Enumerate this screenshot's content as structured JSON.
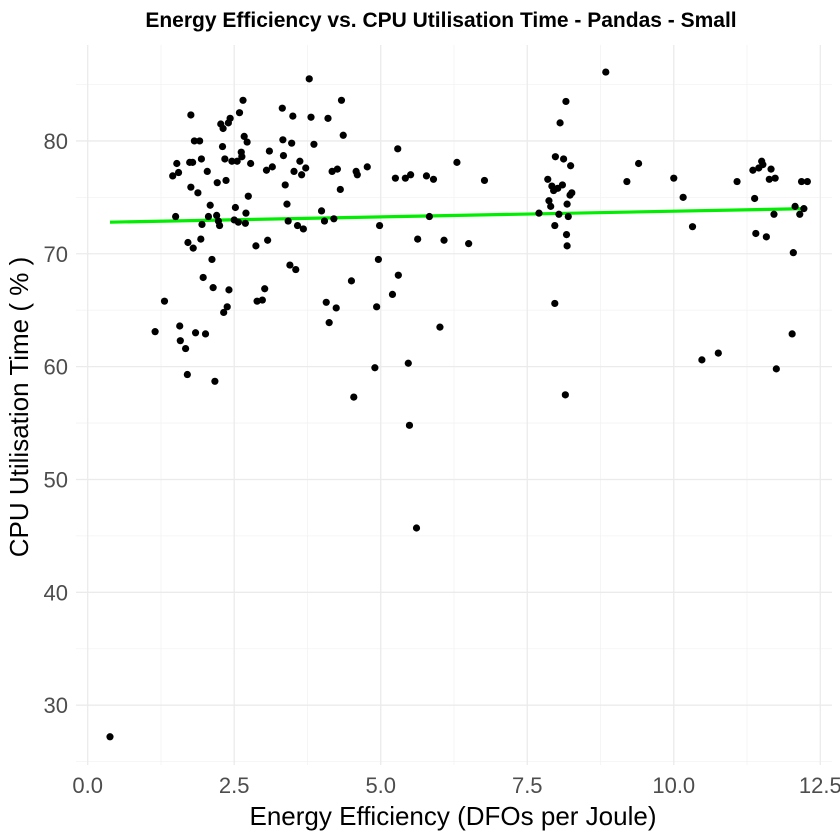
{
  "chart_data": {
    "type": "scatter",
    "title": "Energy Efficiency vs. CPU Utilisation Time  -  Pandas  -  Small",
    "xlabel": "Energy Efficiency (DFOs per Joule)",
    "ylabel": "CPU Utilisation Time ( % )",
    "xlim": [
      -0.2,
      12.7
    ],
    "ylim": [
      24.7,
      88.5
    ],
    "x_ticks": [
      0,
      2.5,
      5,
      7.5,
      10,
      12.5
    ],
    "x_tick_labels": [
      "0.0",
      "2.5",
      "5.0",
      "7.5",
      "10.0",
      "12.5"
    ],
    "y_ticks": [
      30,
      40,
      50,
      60,
      70,
      80
    ],
    "y_tick_labels": [
      "30",
      "40",
      "50",
      "60",
      "70",
      "80"
    ],
    "grid": true,
    "legend": "none",
    "point_color": "#000000",
    "trend_color": "#00ee00",
    "trend_line": {
      "x": [
        0.38,
        12.25
      ],
      "y": [
        72.8,
        74.0
      ]
    },
    "series": [
      {
        "values": [
          [
            0.38,
            27.2
          ],
          [
            1.15,
            63.1
          ],
          [
            1.31,
            65.8
          ],
          [
            1.45,
            76.9
          ],
          [
            1.5,
            73.3
          ],
          [
            1.52,
            78.0
          ],
          [
            1.55,
            77.2
          ],
          [
            1.57,
            63.6
          ],
          [
            1.58,
            62.3
          ],
          [
            1.67,
            61.6
          ],
          [
            1.7,
            59.3
          ],
          [
            1.71,
            71.0
          ],
          [
            1.74,
            78.1
          ],
          [
            1.76,
            82.3
          ],
          [
            1.76,
            75.9
          ],
          [
            1.79,
            78.1
          ],
          [
            1.8,
            70.5
          ],
          [
            1.82,
            80.0
          ],
          [
            1.84,
            63.0
          ],
          [
            1.88,
            75.4
          ],
          [
            1.91,
            80.0
          ],
          [
            1.93,
            71.3
          ],
          [
            1.94,
            78.4
          ],
          [
            1.95,
            72.6
          ],
          [
            1.97,
            67.9
          ],
          [
            2.01,
            62.9
          ],
          [
            2.04,
            77.3
          ],
          [
            2.06,
            73.3
          ],
          [
            2.09,
            74.3
          ],
          [
            2.12,
            69.5
          ],
          [
            2.14,
            67.0
          ],
          [
            2.17,
            58.7
          ],
          [
            2.2,
            73.4
          ],
          [
            2.21,
            76.3
          ],
          [
            2.23,
            72.9
          ],
          [
            2.25,
            72.5
          ],
          [
            2.27,
            81.5
          ],
          [
            2.3,
            79.5
          ],
          [
            2.31,
            81.1
          ],
          [
            2.32,
            64.8
          ],
          [
            2.34,
            78.4
          ],
          [
            2.36,
            76.5
          ],
          [
            2.38,
            65.3
          ],
          [
            2.4,
            81.6
          ],
          [
            2.41,
            66.8
          ],
          [
            2.43,
            82.0
          ],
          [
            2.46,
            78.2
          ],
          [
            2.5,
            73.0
          ],
          [
            2.52,
            74.1
          ],
          [
            2.55,
            78.2
          ],
          [
            2.57,
            72.8
          ],
          [
            2.59,
            82.5
          ],
          [
            2.62,
            79.0
          ],
          [
            2.63,
            78.6
          ],
          [
            2.65,
            83.6
          ],
          [
            2.67,
            80.4
          ],
          [
            2.69,
            72.7
          ],
          [
            2.7,
            73.6
          ],
          [
            2.72,
            79.9
          ],
          [
            2.74,
            75.1
          ],
          [
            2.78,
            78.0
          ],
          [
            2.87,
            70.7
          ],
          [
            2.89,
            65.8
          ],
          [
            2.98,
            65.9
          ],
          [
            3.02,
            66.9
          ],
          [
            3.05,
            77.4
          ],
          [
            3.07,
            71.2
          ],
          [
            3.1,
            79.1
          ],
          [
            3.15,
            77.7
          ],
          [
            3.32,
            82.9
          ],
          [
            3.33,
            80.1
          ],
          [
            3.34,
            78.7
          ],
          [
            3.37,
            76.1
          ],
          [
            3.4,
            74.4
          ],
          [
            3.42,
            72.9
          ],
          [
            3.45,
            69.0
          ],
          [
            3.48,
            79.8
          ],
          [
            3.5,
            82.2
          ],
          [
            3.52,
            77.3
          ],
          [
            3.55,
            68.6
          ],
          [
            3.58,
            72.5
          ],
          [
            3.62,
            78.2
          ],
          [
            3.65,
            77.0
          ],
          [
            3.68,
            72.2
          ],
          [
            3.72,
            77.6
          ],
          [
            3.78,
            85.5
          ],
          [
            3.81,
            82.1
          ],
          [
            3.86,
            79.7
          ],
          [
            3.99,
            73.8
          ],
          [
            4.04,
            72.9
          ],
          [
            4.07,
            65.7
          ],
          [
            4.1,
            82.0
          ],
          [
            4.12,
            63.9
          ],
          [
            4.17,
            77.3
          ],
          [
            4.2,
            73.1
          ],
          [
            4.24,
            65.2
          ],
          [
            4.26,
            77.5
          ],
          [
            4.31,
            75.7
          ],
          [
            4.33,
            83.6
          ],
          [
            4.36,
            80.5
          ],
          [
            4.5,
            67.6
          ],
          [
            4.54,
            57.3
          ],
          [
            4.58,
            77.3
          ],
          [
            4.6,
            77.0
          ],
          [
            4.77,
            77.7
          ],
          [
            4.9,
            59.9
          ],
          [
            4.93,
            65.3
          ],
          [
            4.96,
            69.5
          ],
          [
            4.98,
            72.5
          ],
          [
            5.2,
            66.4
          ],
          [
            5.25,
            76.7
          ],
          [
            5.29,
            79.3
          ],
          [
            5.3,
            68.1
          ],
          [
            5.42,
            76.7
          ],
          [
            5.47,
            60.3
          ],
          [
            5.49,
            54.8
          ],
          [
            5.51,
            77.0
          ],
          [
            5.61,
            45.7
          ],
          [
            5.63,
            71.3
          ],
          [
            5.78,
            76.9
          ],
          [
            5.83,
            73.3
          ],
          [
            5.9,
            76.6
          ],
          [
            6.01,
            63.5
          ],
          [
            6.08,
            71.2
          ],
          [
            6.3,
            78.1
          ],
          [
            6.5,
            70.9
          ],
          [
            6.77,
            76.5
          ],
          [
            7.7,
            73.6
          ],
          [
            7.85,
            76.6
          ],
          [
            7.87,
            74.7
          ],
          [
            7.9,
            74.2
          ],
          [
            7.92,
            76.0
          ],
          [
            7.95,
            75.6
          ],
          [
            7.97,
            72.5
          ],
          [
            7.97,
            65.6
          ],
          [
            7.98,
            78.6
          ],
          [
            8.02,
            75.8
          ],
          [
            8.04,
            73.5
          ],
          [
            8.06,
            81.6
          ],
          [
            8.1,
            76.1
          ],
          [
            8.12,
            78.4
          ],
          [
            8.15,
            57.5
          ],
          [
            8.16,
            83.5
          ],
          [
            8.17,
            71.7
          ],
          [
            8.18,
            74.4
          ],
          [
            8.18,
            70.7
          ],
          [
            8.2,
            73.3
          ],
          [
            8.23,
            75.2
          ],
          [
            8.24,
            77.8
          ],
          [
            8.26,
            75.4
          ],
          [
            8.84,
            86.1
          ],
          [
            9.2,
            76.4
          ],
          [
            9.4,
            78.0
          ],
          [
            10.0,
            76.7
          ],
          [
            10.16,
            75.0
          ],
          [
            10.32,
            72.4
          ],
          [
            10.48,
            60.6
          ],
          [
            10.76,
            61.2
          ],
          [
            11.08,
            76.4
          ],
          [
            11.35,
            77.4
          ],
          [
            11.38,
            74.9
          ],
          [
            11.4,
            71.8
          ],
          [
            11.45,
            77.6
          ],
          [
            11.5,
            78.2
          ],
          [
            11.52,
            77.9
          ],
          [
            11.58,
            71.5
          ],
          [
            11.63,
            76.6
          ],
          [
            11.66,
            77.5
          ],
          [
            11.71,
            73.5
          ],
          [
            11.73,
            76.7
          ],
          [
            11.75,
            59.8
          ],
          [
            12.02,
            62.9
          ],
          [
            12.04,
            70.1
          ],
          [
            12.07,
            74.2
          ],
          [
            12.15,
            73.5
          ],
          [
            12.18,
            76.4
          ],
          [
            12.22,
            74.0
          ],
          [
            12.28,
            76.4
          ]
        ]
      }
    ]
  }
}
